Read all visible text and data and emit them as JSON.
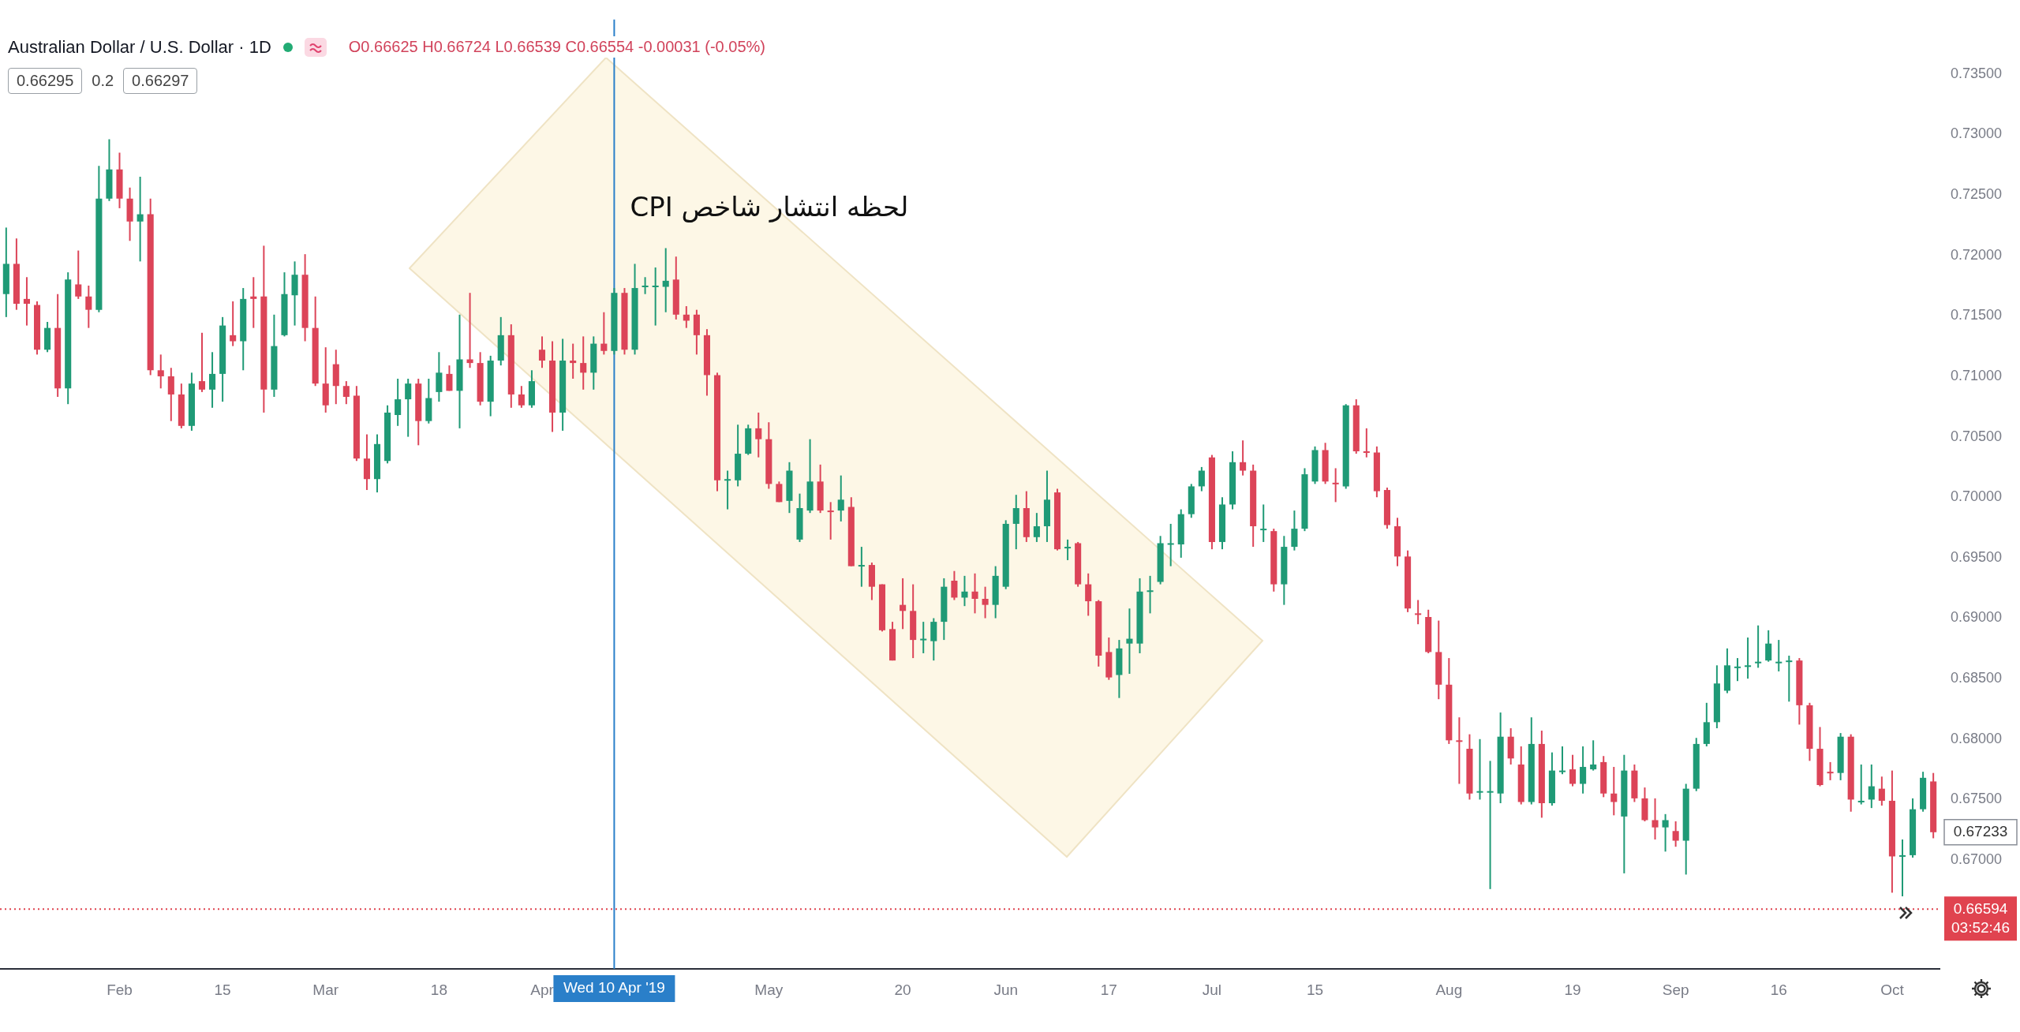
{
  "chart_data": {
    "type": "candlestick",
    "title": "Australian Dollar / U.S. Dollar · 1D",
    "annotations": [
      "O0.66625 H0.66724 L0.66539 C0.66554 -0.00031 (-0.05%)",
      "0.66295",
      "0.2",
      "0.66297",
      {
        "text": "لحظه انتشار شاخص CPI",
        "x": "Wed 10 Apr '19",
        "y": 0.7238
      },
      "0.67233",
      "03:52:46"
    ],
    "categories": [
      null,
      null,
      null,
      null,
      null,
      null,
      null,
      null,
      null,
      null,
      null,
      "Feb",
      null,
      null,
      null,
      null,
      null,
      null,
      null,
      null,
      null,
      "15",
      null,
      null,
      null,
      null,
      null,
      null,
      null,
      null,
      null,
      "Mar",
      null,
      null,
      null,
      null,
      null,
      null,
      null,
      null,
      null,
      null,
      "18",
      null,
      null,
      null,
      null,
      null,
      null,
      null,
      null,
      null,
      "Apr",
      null,
      null,
      null,
      null,
      null,
      null,
      "Wed 10 Apr '19",
      null,
      null,
      null,
      null,
      null,
      null,
      null,
      null,
      null,
      null,
      null,
      null,
      null,
      null,
      "May",
      null,
      null,
      null,
      null,
      null,
      null,
      null,
      null,
      null,
      null,
      null,
      null,
      "20",
      null,
      null,
      null,
      null,
      null,
      null,
      null,
      null,
      null,
      "Jun",
      null,
      null,
      null,
      null,
      null,
      null,
      null,
      null,
      null,
      "17",
      null,
      null,
      null,
      null,
      null,
      null,
      null,
      null,
      null,
      "Jul",
      null,
      null,
      null,
      null,
      null,
      null,
      null,
      null,
      null,
      "15",
      null,
      null,
      null,
      null,
      null,
      null,
      null,
      null,
      null,
      null,
      null,
      null,
      "Aug",
      null,
      null,
      null,
      null,
      null,
      null,
      null,
      null,
      null,
      null,
      null,
      "19",
      null,
      null,
      null,
      null,
      null,
      null,
      null,
      null,
      null,
      "Sep",
      null,
      null,
      null,
      null,
      null,
      null,
      null,
      null,
      null,
      "16",
      null,
      null,
      null,
      null,
      null,
      null,
      null,
      null,
      null,
      null,
      "Oct",
      null,
      null,
      null,
      null
    ],
    "ohlc": [
      [
        0.7168,
        0.7223,
        0.7149,
        0.7193
      ],
      [
        0.7193,
        0.7214,
        0.7155,
        0.716
      ],
      [
        0.7164,
        0.7182,
        0.7142,
        0.716
      ],
      [
        0.7159,
        0.7162,
        0.7118,
        0.7122
      ],
      [
        0.7122,
        0.7145,
        0.712,
        0.714
      ],
      [
        0.714,
        0.7168,
        0.7083,
        0.709
      ],
      [
        0.709,
        0.7186,
        0.7077,
        0.718
      ],
      [
        0.7176,
        0.7204,
        0.7164,
        0.7166
      ],
      [
        0.7166,
        0.7175,
        0.714,
        0.7155
      ],
      [
        0.7155,
        0.7274,
        0.7153,
        0.7247
      ],
      [
        0.7247,
        0.7296,
        0.7245,
        0.7271
      ],
      [
        0.7271,
        0.7285,
        0.7239,
        0.7247
      ],
      [
        0.7247,
        0.7256,
        0.7212,
        0.7228
      ],
      [
        0.7228,
        0.7265,
        0.7195,
        0.7234
      ],
      [
        0.7234,
        0.7247,
        0.7101,
        0.7105
      ],
      [
        0.7105,
        0.7118,
        0.709,
        0.71
      ],
      [
        0.71,
        0.7107,
        0.7063,
        0.7085
      ],
      [
        0.7085,
        0.7094,
        0.7057,
        0.7059
      ],
      [
        0.7059,
        0.7103,
        0.7055,
        0.7094
      ],
      [
        0.7096,
        0.7136,
        0.7087,
        0.7089
      ],
      [
        0.7089,
        0.712,
        0.7074,
        0.7102
      ],
      [
        0.7102,
        0.7149,
        0.7079,
        0.7142
      ],
      [
        0.7134,
        0.7162,
        0.7125,
        0.7129
      ],
      [
        0.7129,
        0.7173,
        0.7105,
        0.7164
      ],
      [
        0.7166,
        0.7182,
        0.714,
        0.7164
      ],
      [
        0.7166,
        0.7208,
        0.707,
        0.7089
      ],
      [
        0.7089,
        0.7151,
        0.7083,
        0.7125
      ],
      [
        0.7134,
        0.7186,
        0.7133,
        0.7168
      ],
      [
        0.7167,
        0.7195,
        0.7142,
        0.7184
      ],
      [
        0.7184,
        0.7201,
        0.7129,
        0.714
      ],
      [
        0.714,
        0.7166,
        0.7092,
        0.7094
      ],
      [
        0.7094,
        0.7124,
        0.707,
        0.7076
      ],
      [
        0.711,
        0.7122,
        0.7077,
        0.7092
      ],
      [
        0.7092,
        0.7096,
        0.7077,
        0.7083
      ],
      [
        0.7084,
        0.7092,
        0.703,
        0.7032
      ],
      [
        0.7032,
        0.7052,
        0.7006,
        0.7015
      ],
      [
        0.7015,
        0.7052,
        0.7004,
        0.7044
      ],
      [
        0.703,
        0.7076,
        0.7028,
        0.707
      ],
      [
        0.7068,
        0.7098,
        0.7059,
        0.7081
      ],
      [
        0.7081,
        0.7098,
        0.705,
        0.7094
      ],
      [
        0.7094,
        0.7098,
        0.7043,
        0.7063
      ],
      [
        0.7063,
        0.7098,
        0.7061,
        0.7082
      ],
      [
        0.7087,
        0.712,
        0.7079,
        0.7103
      ],
      [
        0.7102,
        0.7109,
        0.7088,
        0.7088
      ],
      [
        0.7088,
        0.7151,
        0.7057,
        0.7114
      ],
      [
        0.7114,
        0.7169,
        0.7107,
        0.7111
      ],
      [
        0.7111,
        0.712,
        0.7076,
        0.7079
      ],
      [
        0.7079,
        0.7117,
        0.7067,
        0.7113
      ],
      [
        0.7113,
        0.7149,
        0.7109,
        0.7134
      ],
      [
        0.7134,
        0.7143,
        0.7074,
        0.7085
      ],
      [
        0.7085,
        0.7092,
        0.7074,
        0.7076
      ],
      [
        0.7076,
        0.7105,
        0.7074,
        0.7096
      ],
      [
        0.7122,
        0.7133,
        0.7107,
        0.7113
      ],
      [
        0.7113,
        0.7129,
        0.7054,
        0.707
      ],
      [
        0.707,
        0.7131,
        0.7055,
        0.7113
      ],
      [
        0.7113,
        0.7127,
        0.7098,
        0.7111
      ],
      [
        0.7111,
        0.7133,
        0.7089,
        0.7103
      ],
      [
        0.7103,
        0.7133,
        0.7089,
        0.7127
      ],
      [
        0.7127,
        0.7153,
        0.7118,
        0.7121
      ],
      [
        0.7121,
        0.7173,
        0.7118,
        0.7169
      ],
      [
        0.7169,
        0.7173,
        0.7118,
        0.7122
      ],
      [
        0.7122,
        0.7193,
        0.7118,
        0.7173
      ],
      [
        0.7174,
        0.7182,
        0.7168,
        0.7175
      ],
      [
        0.7175,
        0.719,
        0.7142,
        0.7175
      ],
      [
        0.7174,
        0.7206,
        0.7153,
        0.7179
      ],
      [
        0.718,
        0.7199,
        0.7147,
        0.7151
      ],
      [
        0.7151,
        0.7158,
        0.714,
        0.7146
      ],
      [
        0.7151,
        0.7155,
        0.7118,
        0.7134
      ],
      [
        0.7134,
        0.7139,
        0.7084,
        0.7101
      ],
      [
        0.7101,
        0.7103,
        0.7005,
        0.7014
      ],
      [
        0.7014,
        0.7022,
        0.699,
        0.7015
      ],
      [
        0.7014,
        0.706,
        0.7009,
        0.7036
      ],
      [
        0.7036,
        0.706,
        0.7035,
        0.7057
      ],
      [
        0.7057,
        0.707,
        0.7033,
        0.7048
      ],
      [
        0.7048,
        0.7062,
        0.7007,
        0.7011
      ],
      [
        0.7011,
        0.7013,
        0.6996,
        0.6996
      ],
      [
        0.6997,
        0.7029,
        0.6987,
        0.7022
      ],
      [
        0.6965,
        0.7003,
        0.6963,
        0.6991
      ],
      [
        0.6989,
        0.7048,
        0.6987,
        0.7013
      ],
      [
        0.7013,
        0.7027,
        0.6987,
        0.6989
      ],
      [
        0.6989,
        0.6996,
        0.6965,
        0.6988
      ],
      [
        0.6989,
        0.7018,
        0.698,
        0.6998
      ],
      [
        0.6992,
        0.7,
        0.6943,
        0.6943
      ],
      [
        0.6944,
        0.6959,
        0.6926,
        0.6944
      ],
      [
        0.6944,
        0.6946,
        0.6915,
        0.6926
      ],
      [
        0.6928,
        0.6928,
        0.6889,
        0.689
      ],
      [
        0.6891,
        0.6897,
        0.6865,
        0.6865
      ],
      [
        0.6911,
        0.6933,
        0.6891,
        0.6906
      ],
      [
        0.6906,
        0.6928,
        0.6867,
        0.6882
      ],
      [
        0.6883,
        0.6897,
        0.6871,
        0.6883
      ],
      [
        0.6881,
        0.69,
        0.6865,
        0.6897
      ],
      [
        0.6897,
        0.6933,
        0.6882,
        0.6926
      ],
      [
        0.6931,
        0.6939,
        0.6915,
        0.6917
      ],
      [
        0.6917,
        0.6935,
        0.691,
        0.6922
      ],
      [
        0.6922,
        0.6937,
        0.6904,
        0.6916
      ],
      [
        0.6916,
        0.6926,
        0.69,
        0.6911
      ],
      [
        0.6911,
        0.6943,
        0.69,
        0.6935
      ],
      [
        0.6926,
        0.6981,
        0.6924,
        0.6978
      ],
      [
        0.6978,
        0.7002,
        0.6957,
        0.6991
      ],
      [
        0.6991,
        0.7005,
        0.6963,
        0.6967
      ],
      [
        0.6967,
        0.6987,
        0.6963,
        0.6976
      ],
      [
        0.6976,
        0.7022,
        0.6963,
        0.6998
      ],
      [
        0.7004,
        0.7007,
        0.6956,
        0.6957
      ],
      [
        0.6959,
        0.6965,
        0.6948,
        0.6959
      ],
      [
        0.6962,
        0.6963,
        0.6926,
        0.6928
      ],
      [
        0.6928,
        0.6937,
        0.6902,
        0.6914
      ],
      [
        0.6914,
        0.6915,
        0.686,
        0.6869
      ],
      [
        0.6872,
        0.6884,
        0.6849,
        0.6851
      ],
      [
        0.6853,
        0.6882,
        0.6834,
        0.6875
      ],
      [
        0.6879,
        0.6908,
        0.6854,
        0.6883
      ],
      [
        0.6879,
        0.6933,
        0.6871,
        0.6922
      ],
      [
        0.6923,
        0.6935,
        0.6904,
        0.6923
      ],
      [
        0.693,
        0.6968,
        0.6928,
        0.6962
      ],
      [
        0.6962,
        0.6978,
        0.6943,
        0.6962
      ],
      [
        0.6961,
        0.699,
        0.695,
        0.6986
      ],
      [
        0.6986,
        0.7011,
        0.6983,
        0.7009
      ],
      [
        0.7009,
        0.7025,
        0.7005,
        0.7022
      ],
      [
        0.7033,
        0.7035,
        0.6957,
        0.6963
      ],
      [
        0.6963,
        0.7,
        0.6957,
        0.6994
      ],
      [
        0.6994,
        0.7038,
        0.699,
        0.7029
      ],
      [
        0.7029,
        0.7047,
        0.7018,
        0.7022
      ],
      [
        0.7022,
        0.7027,
        0.6959,
        0.6976
      ],
      [
        0.6974,
        0.6994,
        0.6963,
        0.6974
      ],
      [
        0.6972,
        0.6974,
        0.6922,
        0.6928
      ],
      [
        0.6928,
        0.6968,
        0.6911,
        0.6959
      ],
      [
        0.6959,
        0.6989,
        0.6956,
        0.6974
      ],
      [
        0.6974,
        0.7024,
        0.6972,
        0.7019
      ],
      [
        0.7013,
        0.7042,
        0.7011,
        0.7039
      ],
      [
        0.7039,
        0.7045,
        0.7011,
        0.7013
      ],
      [
        0.7012,
        0.7024,
        0.6996,
        0.7011
      ],
      [
        0.7009,
        0.7077,
        0.7007,
        0.7076
      ],
      [
        0.7076,
        0.7081,
        0.7036,
        0.7038
      ],
      [
        0.7038,
        0.7057,
        0.7033,
        0.7037
      ],
      [
        0.7037,
        0.7042,
        0.7,
        0.7005
      ],
      [
        0.7006,
        0.7008,
        0.6974,
        0.6977
      ],
      [
        0.6976,
        0.6983,
        0.6943,
        0.6951
      ],
      [
        0.6951,
        0.6956,
        0.6905,
        0.6908
      ],
      [
        0.6904,
        0.6915,
        0.6895,
        0.6903
      ],
      [
        0.6901,
        0.6907,
        0.6871,
        0.6872
      ],
      [
        0.6872,
        0.6898,
        0.6833,
        0.6845
      ],
      [
        0.6845,
        0.6867,
        0.6796,
        0.6799
      ],
      [
        0.6799,
        0.6818,
        0.6763,
        0.6798
      ],
      [
        0.6792,
        0.6804,
        0.675,
        0.6755
      ],
      [
        0.6757,
        0.68,
        0.675,
        0.6757
      ],
      [
        0.6757,
        0.6782,
        0.6676,
        0.6757
      ],
      [
        0.6755,
        0.6822,
        0.6747,
        0.6802
      ],
      [
        0.6802,
        0.6809,
        0.6779,
        0.6784
      ],
      [
        0.6779,
        0.6794,
        0.6746,
        0.6748
      ],
      [
        0.6748,
        0.6818,
        0.6746,
        0.6796
      ],
      [
        0.6796,
        0.6807,
        0.6735,
        0.6747
      ],
      [
        0.6747,
        0.6789,
        0.6745,
        0.6774
      ],
      [
        0.6774,
        0.6794,
        0.6771,
        0.6774
      ],
      [
        0.6775,
        0.6787,
        0.6761,
        0.6763
      ],
      [
        0.6763,
        0.6794,
        0.6755,
        0.6777
      ],
      [
        0.6775,
        0.6799,
        0.6774,
        0.6779
      ],
      [
        0.6781,
        0.6786,
        0.6752,
        0.6755
      ],
      [
        0.6755,
        0.6777,
        0.6737,
        0.6748
      ],
      [
        0.6736,
        0.6787,
        0.6689,
        0.6774
      ],
      [
        0.6774,
        0.6779,
        0.6748,
        0.6751
      ],
      [
        0.6751,
        0.676,
        0.6732,
        0.6733
      ],
      [
        0.6733,
        0.6751,
        0.6717,
        0.6727
      ],
      [
        0.6727,
        0.6738,
        0.6707,
        0.6733
      ],
      [
        0.6724,
        0.6732,
        0.6711,
        0.6716
      ],
      [
        0.6716,
        0.6763,
        0.6688,
        0.6759
      ],
      [
        0.6759,
        0.6801,
        0.6757,
        0.6796
      ],
      [
        0.6796,
        0.683,
        0.6794,
        0.6814
      ],
      [
        0.6814,
        0.6861,
        0.6809,
        0.6846
      ],
      [
        0.684,
        0.6875,
        0.6838,
        0.6861
      ],
      [
        0.686,
        0.6867,
        0.6848,
        0.686
      ],
      [
        0.6861,
        0.6884,
        0.685,
        0.6861
      ],
      [
        0.6864,
        0.6894,
        0.6859,
        0.6864
      ],
      [
        0.6865,
        0.689,
        0.6864,
        0.6879
      ],
      [
        0.6864,
        0.6882,
        0.6856,
        0.6864
      ],
      [
        0.6865,
        0.6869,
        0.6831,
        0.6865
      ],
      [
        0.6865,
        0.6867,
        0.6812,
        0.6828
      ],
      [
        0.6828,
        0.683,
        0.6782,
        0.6792
      ],
      [
        0.6792,
        0.681,
        0.6761,
        0.6762
      ],
      [
        0.6773,
        0.6781,
        0.6766,
        0.6772
      ],
      [
        0.6772,
        0.6805,
        0.6766,
        0.6802
      ],
      [
        0.6802,
        0.6804,
        0.674,
        0.675
      ],
      [
        0.6749,
        0.6779,
        0.6746,
        0.6749
      ],
      [
        0.675,
        0.6779,
        0.6743,
        0.6761
      ],
      [
        0.6759,
        0.6769,
        0.6745,
        0.6749
      ],
      [
        0.6749,
        0.6774,
        0.6673,
        0.6703
      ],
      [
        0.6704,
        0.6717,
        0.667,
        0.6704
      ],
      [
        0.6704,
        0.6751,
        0.6702,
        0.6742
      ],
      [
        0.6742,
        0.6773,
        0.674,
        0.6768
      ],
      [
        0.6765,
        0.6772,
        0.6718,
        0.6723
      ]
    ],
    "ylim": [
      0.661,
      0.7395
    ],
    "yticks": [
      {
        "value": 0.735,
        "label": "0.73500"
      },
      {
        "value": 0.73,
        "label": "0.73000"
      },
      {
        "value": 0.725,
        "label": "0.72500"
      },
      {
        "value": 0.72,
        "label": "0.72000"
      },
      {
        "value": 0.715,
        "label": "0.71500"
      },
      {
        "value": 0.71,
        "label": "0.71000"
      },
      {
        "value": 0.705,
        "label": "0.70500"
      },
      {
        "value": 0.7,
        "label": "0.70000"
      },
      {
        "value": 0.695,
        "label": "0.69500"
      },
      {
        "value": 0.69,
        "label": "0.69000"
      },
      {
        "value": 0.685,
        "label": "0.68500"
      },
      {
        "value": 0.68,
        "label": "0.68000"
      },
      {
        "value": 0.675,
        "label": "0.67500"
      },
      {
        "value": 0.67,
        "label": "0.67000"
      }
    ],
    "ref_lines": [
      {
        "axis": "x",
        "value": "Wed 10 Apr '19",
        "color": "#2a7fc9",
        "line_style": "solid"
      },
      {
        "axis": "y",
        "value": 0.66594,
        "label": "0.66594",
        "color": "#e0434f",
        "line_style": "dotted"
      }
    ]
  }
}
